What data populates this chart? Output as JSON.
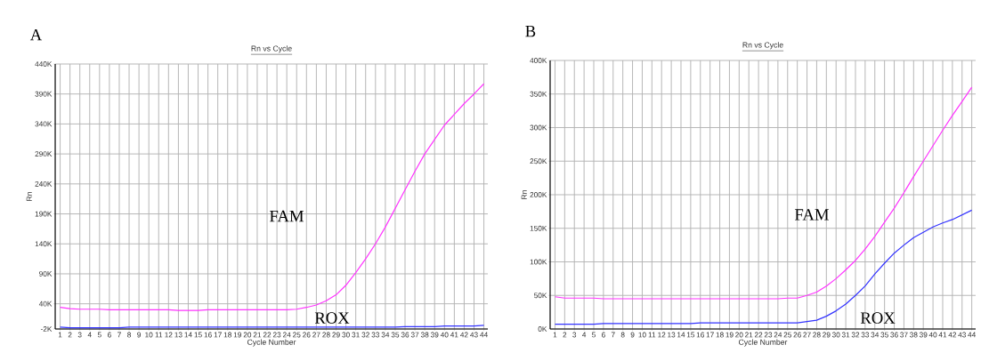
{
  "chart_data": [
    {
      "type": "line",
      "title": "A",
      "subtitle": "Rn vs Cycle",
      "xlabel": "Cycle Number",
      "ylabel": "Rn",
      "x": [
        1,
        2,
        3,
        4,
        5,
        6,
        7,
        8,
        9,
        10,
        11,
        12,
        13,
        14,
        15,
        16,
        17,
        18,
        19,
        20,
        21,
        22,
        23,
        24,
        25,
        26,
        27,
        28,
        29,
        30,
        31,
        32,
        33,
        34,
        35,
        36,
        37,
        38,
        39,
        40,
        41,
        42,
        43,
        44
      ],
      "series": [
        {
          "color": "#ff33ff",
          "values": [
            34000,
            32000,
            31000,
            31000,
            31000,
            30000,
            30000,
            30000,
            30000,
            30000,
            30000,
            30000,
            29000,
            29000,
            29000,
            30000,
            30000,
            30000,
            30000,
            30000,
            30000,
            30000,
            30000,
            30000,
            31000,
            34000,
            38000,
            45000,
            55000,
            71000,
            92000,
            115000,
            140000,
            168000,
            199000,
            230000,
            261000,
            290000,
            314000,
            338000,
            356000,
            374000,
            390000,
            407000
          ]
        },
        {
          "color": "#3333ff",
          "values": [
            1000,
            0,
            0,
            0,
            0,
            0,
            0,
            1000,
            1000,
            1000,
            1000,
            1000,
            1000,
            1000,
            1000,
            1000,
            1000,
            1000,
            1000,
            1000,
            1000,
            1000,
            1000,
            1000,
            1000,
            1000,
            1000,
            1000,
            1000,
            1000,
            1000,
            1000,
            1000,
            1000,
            1000,
            2000,
            2000,
            2000,
            2000,
            3000,
            3000,
            3000,
            3000,
            4000
          ]
        }
      ],
      "xlim": [
        0.5,
        44.4
      ],
      "ylim": [
        -2000,
        440000
      ],
      "xticks": [
        1,
        2,
        3,
        4,
        5,
        6,
        7,
        8,
        9,
        10,
        11,
        12,
        13,
        14,
        15,
        16,
        17,
        18,
        19,
        20,
        21,
        22,
        23,
        24,
        25,
        26,
        27,
        28,
        29,
        30,
        31,
        32,
        33,
        34,
        35,
        36,
        37,
        38,
        39,
        40,
        41,
        42,
        43,
        44
      ],
      "yticks": [
        {
          "value": -2000,
          "label": "-2K"
        },
        {
          "value": 40000,
          "label": "40K"
        },
        {
          "value": 90000,
          "label": "90K"
        },
        {
          "value": 140000,
          "label": "140K"
        },
        {
          "value": 190000,
          "label": "190K"
        },
        {
          "value": 240000,
          "label": "240K"
        },
        {
          "value": 290000,
          "label": "290K"
        },
        {
          "value": 340000,
          "label": "340K"
        },
        {
          "value": 390000,
          "label": "390K"
        },
        {
          "value": 440000,
          "label": "440K"
        }
      ],
      "grid": true,
      "annotations": [
        "FAM",
        "ROX"
      ]
    },
    {
      "type": "line",
      "title": "B",
      "subtitle": "Rn vs Cycle",
      "xlabel": "Cycle Number",
      "ylabel": "Rn",
      "x": [
        1,
        2,
        3,
        4,
        5,
        6,
        7,
        8,
        9,
        10,
        11,
        12,
        13,
        14,
        15,
        16,
        17,
        18,
        19,
        20,
        21,
        22,
        23,
        24,
        25,
        26,
        27,
        28,
        29,
        30,
        31,
        32,
        33,
        34,
        35,
        36,
        37,
        38,
        39,
        40,
        41,
        42,
        43,
        44
      ],
      "series": [
        {
          "color": "#ff33ff",
          "values": [
            48000,
            46000,
            46000,
            46000,
            46000,
            45000,
            45000,
            45000,
            45000,
            45000,
            45000,
            45000,
            45000,
            45000,
            45000,
            45000,
            45000,
            45000,
            45000,
            45000,
            45000,
            45000,
            45000,
            45000,
            46000,
            46000,
            50000,
            55000,
            64000,
            75000,
            88000,
            102000,
            119000,
            138000,
            159000,
            180000,
            203000,
            227000,
            250000,
            273000,
            296000,
            318000,
            339000,
            360000
          ]
        },
        {
          "color": "#3333ff",
          "values": [
            7000,
            7000,
            7000,
            7000,
            7000,
            8000,
            8000,
            8000,
            8000,
            8000,
            8000,
            8000,
            8000,
            8000,
            8000,
            9000,
            9000,
            9000,
            9000,
            9000,
            9000,
            9000,
            9000,
            9000,
            9000,
            9000,
            11000,
            13000,
            19000,
            27000,
            37000,
            50000,
            64000,
            82000,
            98000,
            113000,
            125000,
            136000,
            144000,
            152000,
            158000,
            163000,
            170000,
            177000
          ]
        }
      ],
      "xlim": [
        0.5,
        44.4
      ],
      "ylim": [
        0,
        400000
      ],
      "xticks": [
        1,
        2,
        3,
        4,
        5,
        6,
        7,
        8,
        9,
        10,
        11,
        12,
        13,
        14,
        15,
        16,
        17,
        18,
        19,
        20,
        21,
        22,
        23,
        24,
        25,
        26,
        27,
        28,
        29,
        30,
        31,
        32,
        33,
        34,
        35,
        36,
        37,
        38,
        39,
        40,
        41,
        42,
        43,
        44
      ],
      "yticks": [
        {
          "value": 0,
          "label": "0K"
        },
        {
          "value": 50000,
          "label": "50K"
        },
        {
          "value": 100000,
          "label": "100K"
        },
        {
          "value": 150000,
          "label": "150K"
        },
        {
          "value": 200000,
          "label": "200K"
        },
        {
          "value": 250000,
          "label": "250K"
        },
        {
          "value": 300000,
          "label": "300K"
        },
        {
          "value": 350000,
          "label": "350K"
        },
        {
          "value": 400000,
          "label": "400K"
        }
      ],
      "grid": true,
      "annotations": [
        "FAM",
        "ROX"
      ]
    }
  ]
}
